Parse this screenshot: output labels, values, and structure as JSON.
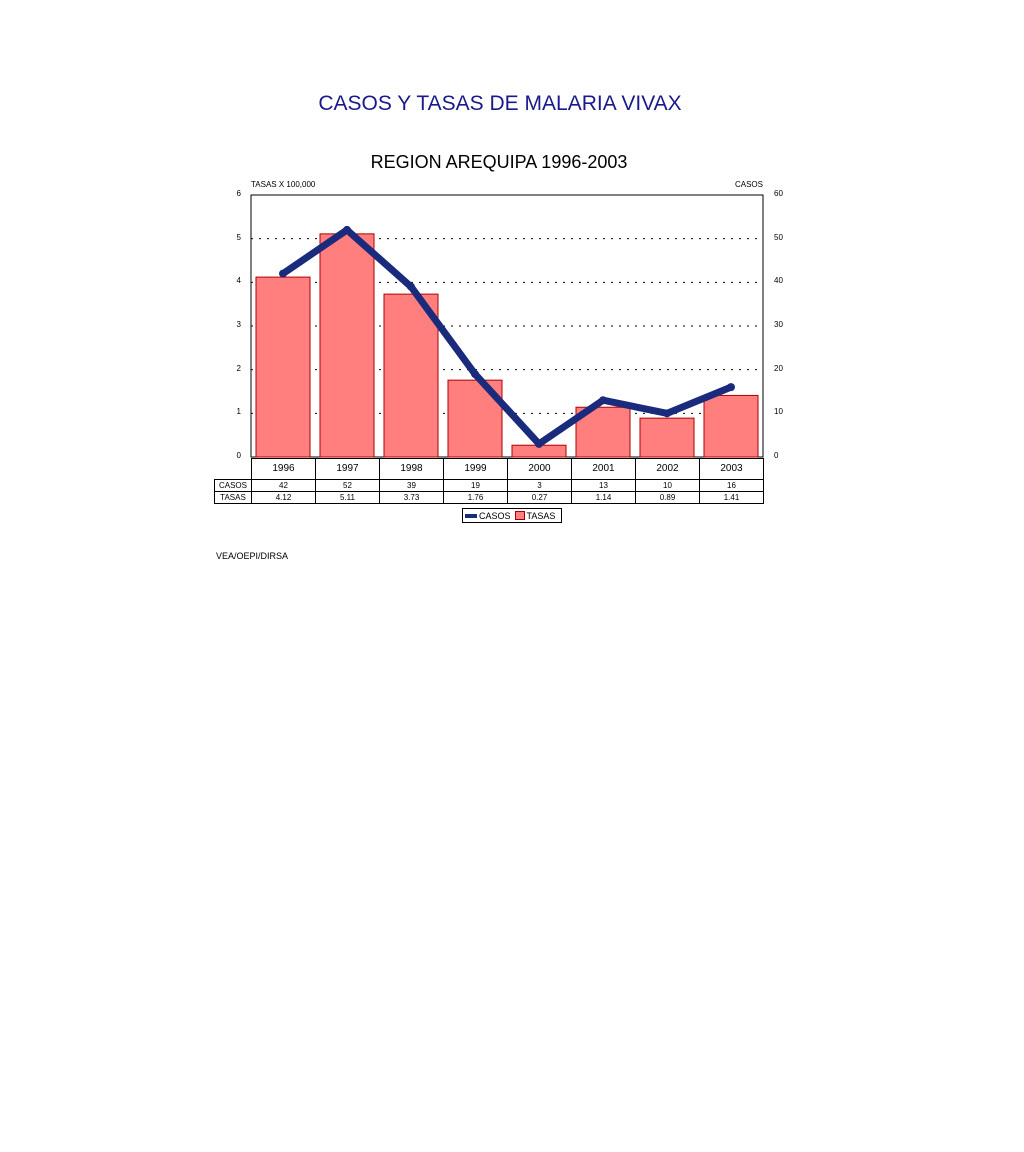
{
  "chart_data": {
    "type": "bar",
    "title": "CASOS Y TASAS DE MALARIA VIVAX",
    "subtitle": "REGION AREQUIPA 1996-2003",
    "ylabel_left": "TASAS X 100,000",
    "ylabel_right": "CASOS",
    "categories": [
      "1996",
      "1997",
      "1998",
      "1999",
      "2000",
      "2001",
      "2002",
      "2003"
    ],
    "series": [
      {
        "name": "CASOS",
        "type": "line",
        "axis": "right",
        "color": "#1a2a7c",
        "values": [
          42,
          52,
          39,
          19,
          3,
          13,
          10,
          16
        ],
        "labels": [
          "42",
          "52",
          "39",
          "19",
          "3",
          "13",
          "10",
          "16"
        ]
      },
      {
        "name": "TASAS",
        "type": "bar",
        "axis": "left",
        "color": "#ff7f7f",
        "values": [
          4.12,
          5.11,
          3.73,
          1.76,
          0.27,
          1.14,
          0.89,
          1.41
        ],
        "labels": [
          "4.12",
          "5.11",
          "3.73",
          "1.76",
          "0.27",
          "1.14",
          "0.89",
          "1.41"
        ]
      }
    ],
    "ylim_left": [
      0,
      6
    ],
    "ylim_right": [
      0,
      60
    ],
    "yticks_left": [
      "0",
      "1",
      "2",
      "3",
      "4",
      "5",
      "6"
    ],
    "yticks_right": [
      "0",
      "10",
      "20",
      "30",
      "40",
      "50",
      "60"
    ],
    "grid": "horizontal-dashed",
    "legend": "bottom"
  },
  "footer": "VEA/OEPI/DIRSA"
}
